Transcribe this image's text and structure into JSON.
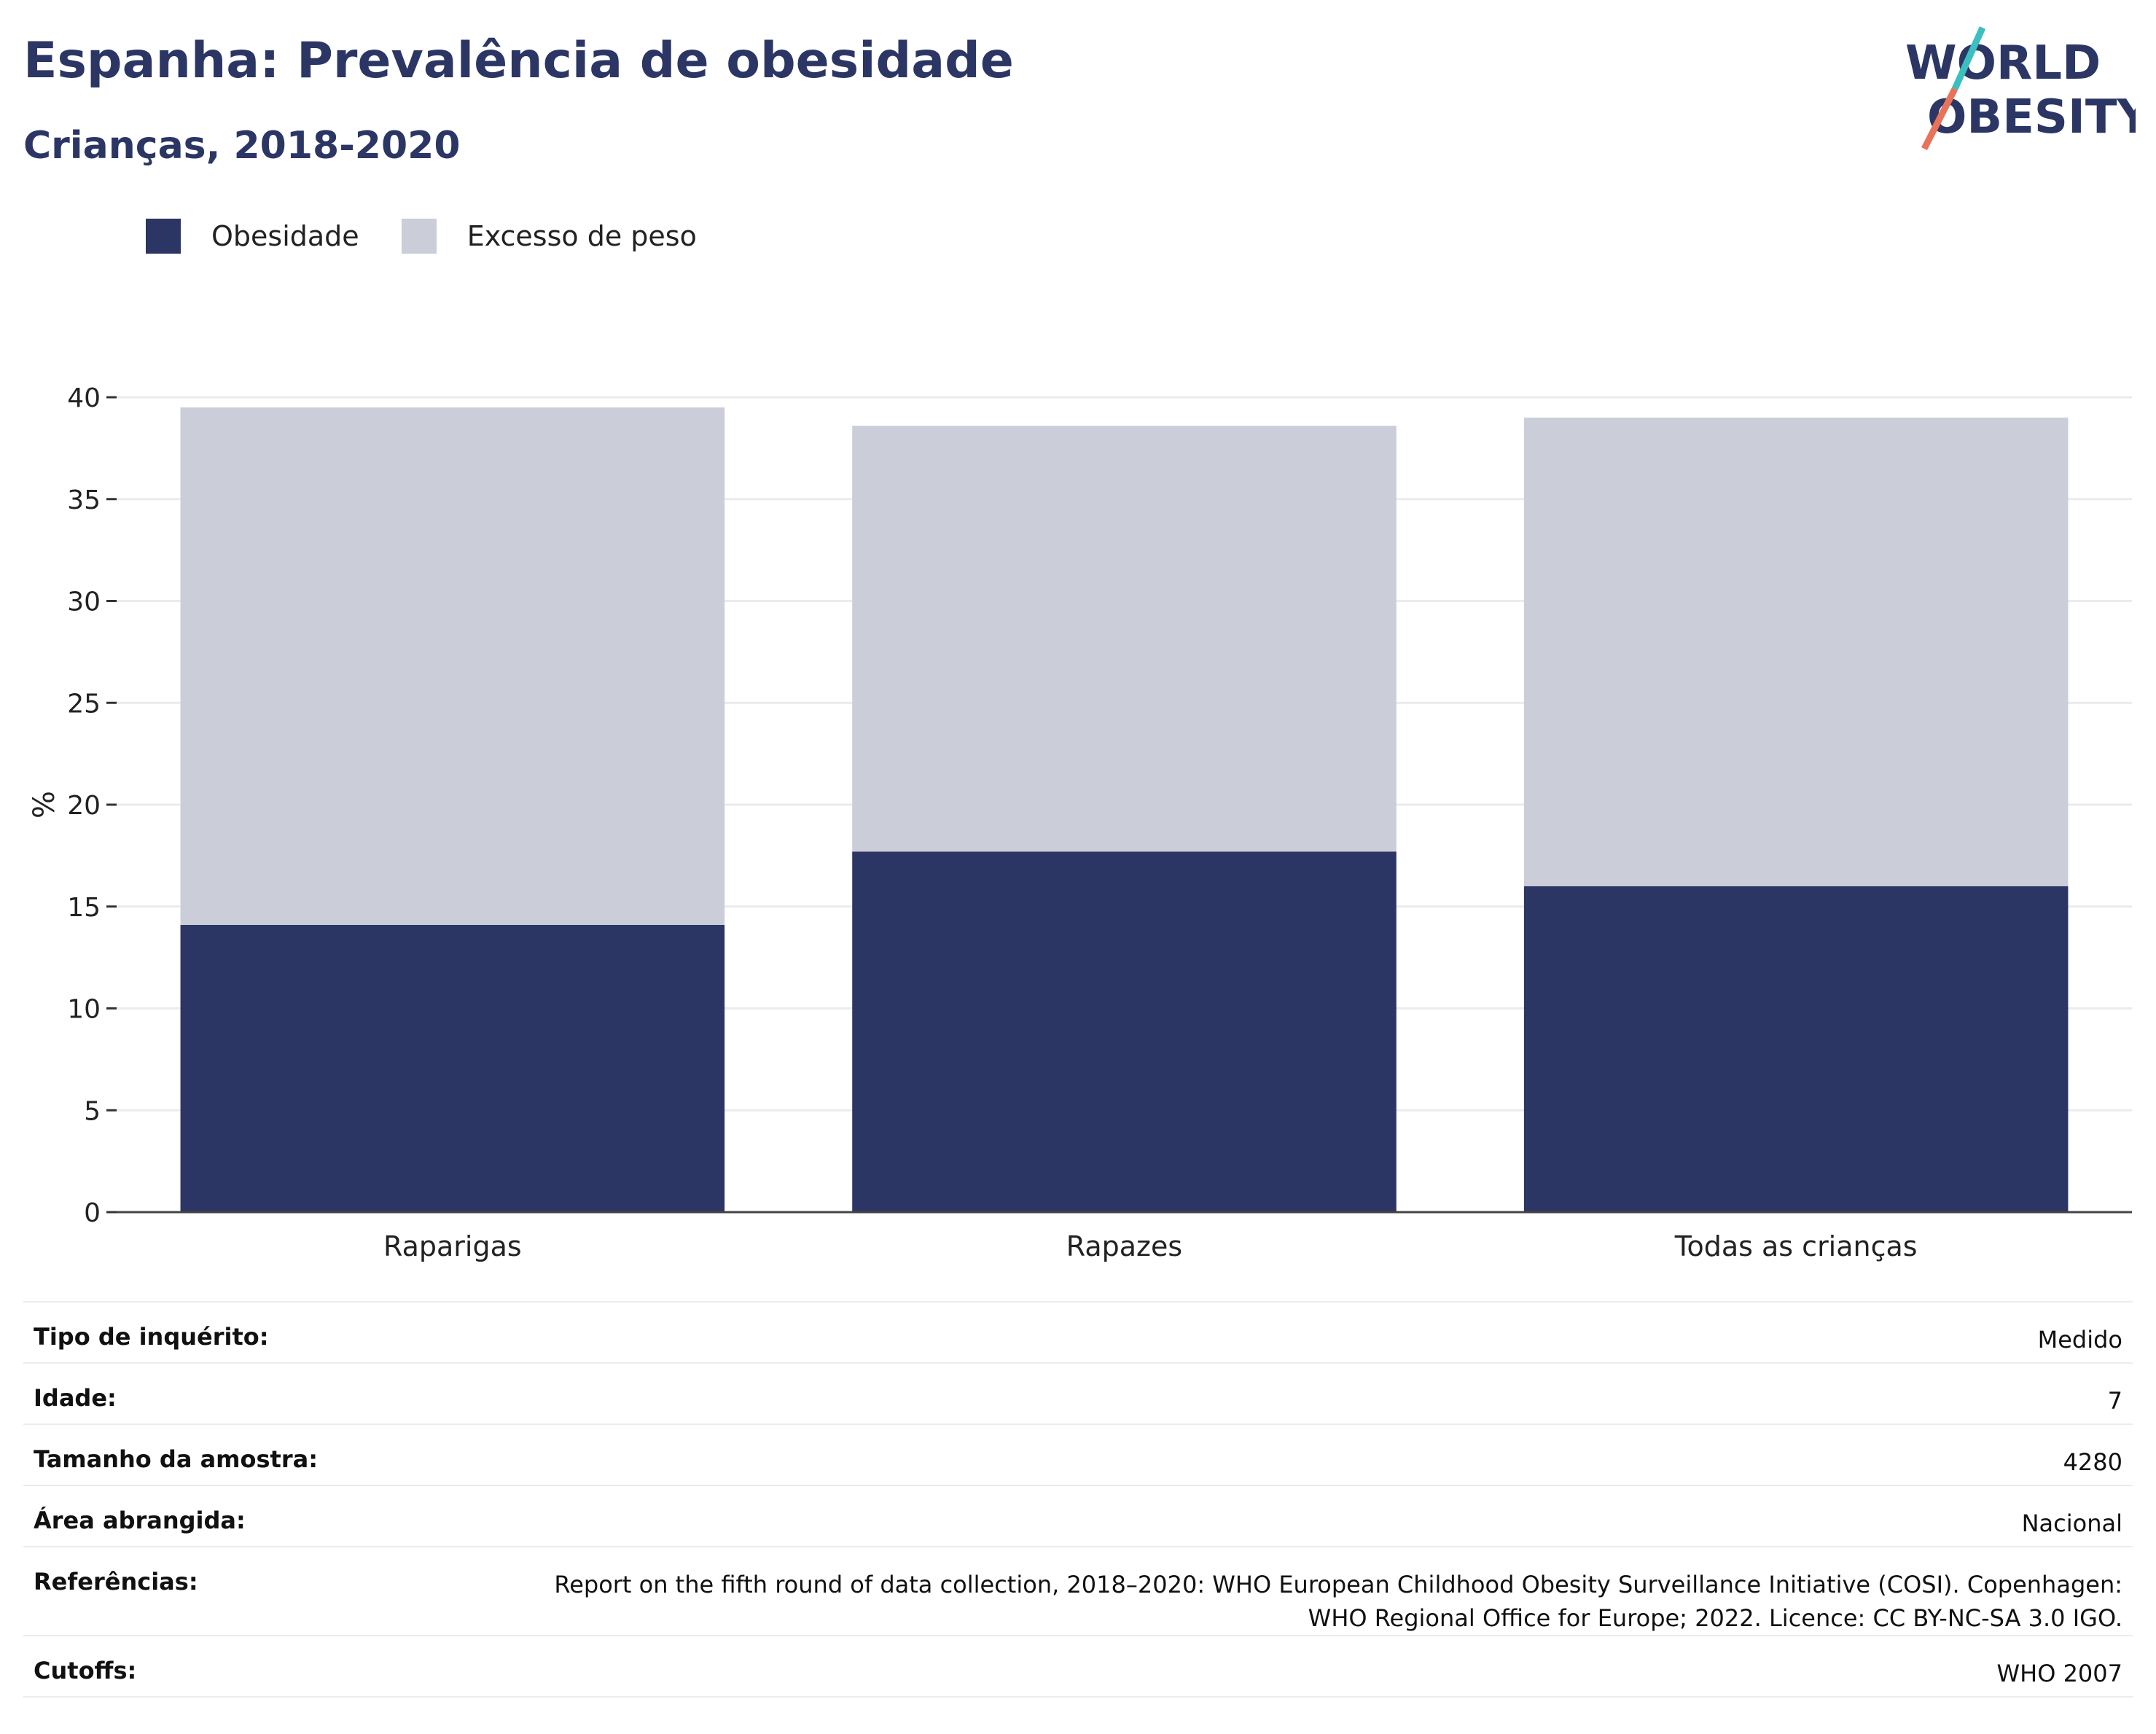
{
  "header": {
    "title": "Espanha: Prevalência de obesidade",
    "subtitle": "Crianças, 2018-2020"
  },
  "logo": {
    "line1": "WORLD",
    "line2": "OBESITY",
    "colors": {
      "text": "#2b3664",
      "slash_top": "#3bbfbf",
      "slash_bottom": "#e8735a"
    }
  },
  "legend": [
    {
      "label": "Obesidade",
      "color": "#2b3664"
    },
    {
      "label": "Excesso de peso",
      "color": "#cbcdd8"
    }
  ],
  "chart_data": {
    "type": "bar",
    "stacked": true,
    "categories": [
      "Raparigas",
      "Rapazes",
      "Todas as crianças"
    ],
    "series": [
      {
        "name": "Obesidade",
        "color": "#2b3664",
        "values": [
          14.1,
          17.7,
          16.0
        ]
      },
      {
        "name": "Excesso de peso",
        "color": "#cbcdd8",
        "values": [
          25.4,
          20.9,
          23.0
        ]
      }
    ],
    "ylabel": "%",
    "ylim": [
      0,
      40
    ],
    "yticks": [
      0,
      5,
      10,
      15,
      20,
      25,
      30,
      35,
      40
    ],
    "grid": true,
    "legend_position": "top-left"
  },
  "info": {
    "rows": [
      {
        "key": "Tipo de inquérito:",
        "value": "Medido"
      },
      {
        "key": "Idade:",
        "value": "7"
      },
      {
        "key": "Tamanho da amostra:",
        "value": "4280"
      },
      {
        "key": "Área abrangida:",
        "value": "Nacional"
      },
      {
        "key": "Referências:",
        "value_lines": [
          "Report on the fifth round of data collection, 2018–2020: WHO European Childhood Obesity Surveillance Initiative (COSI). Copenhagen:",
          "WHO Regional Office for Europe; 2022. Licence: CC BY-NC-SA 3.0 IGO."
        ]
      },
      {
        "key": "Cutoffs:",
        "value": "WHO 2007"
      }
    ]
  }
}
